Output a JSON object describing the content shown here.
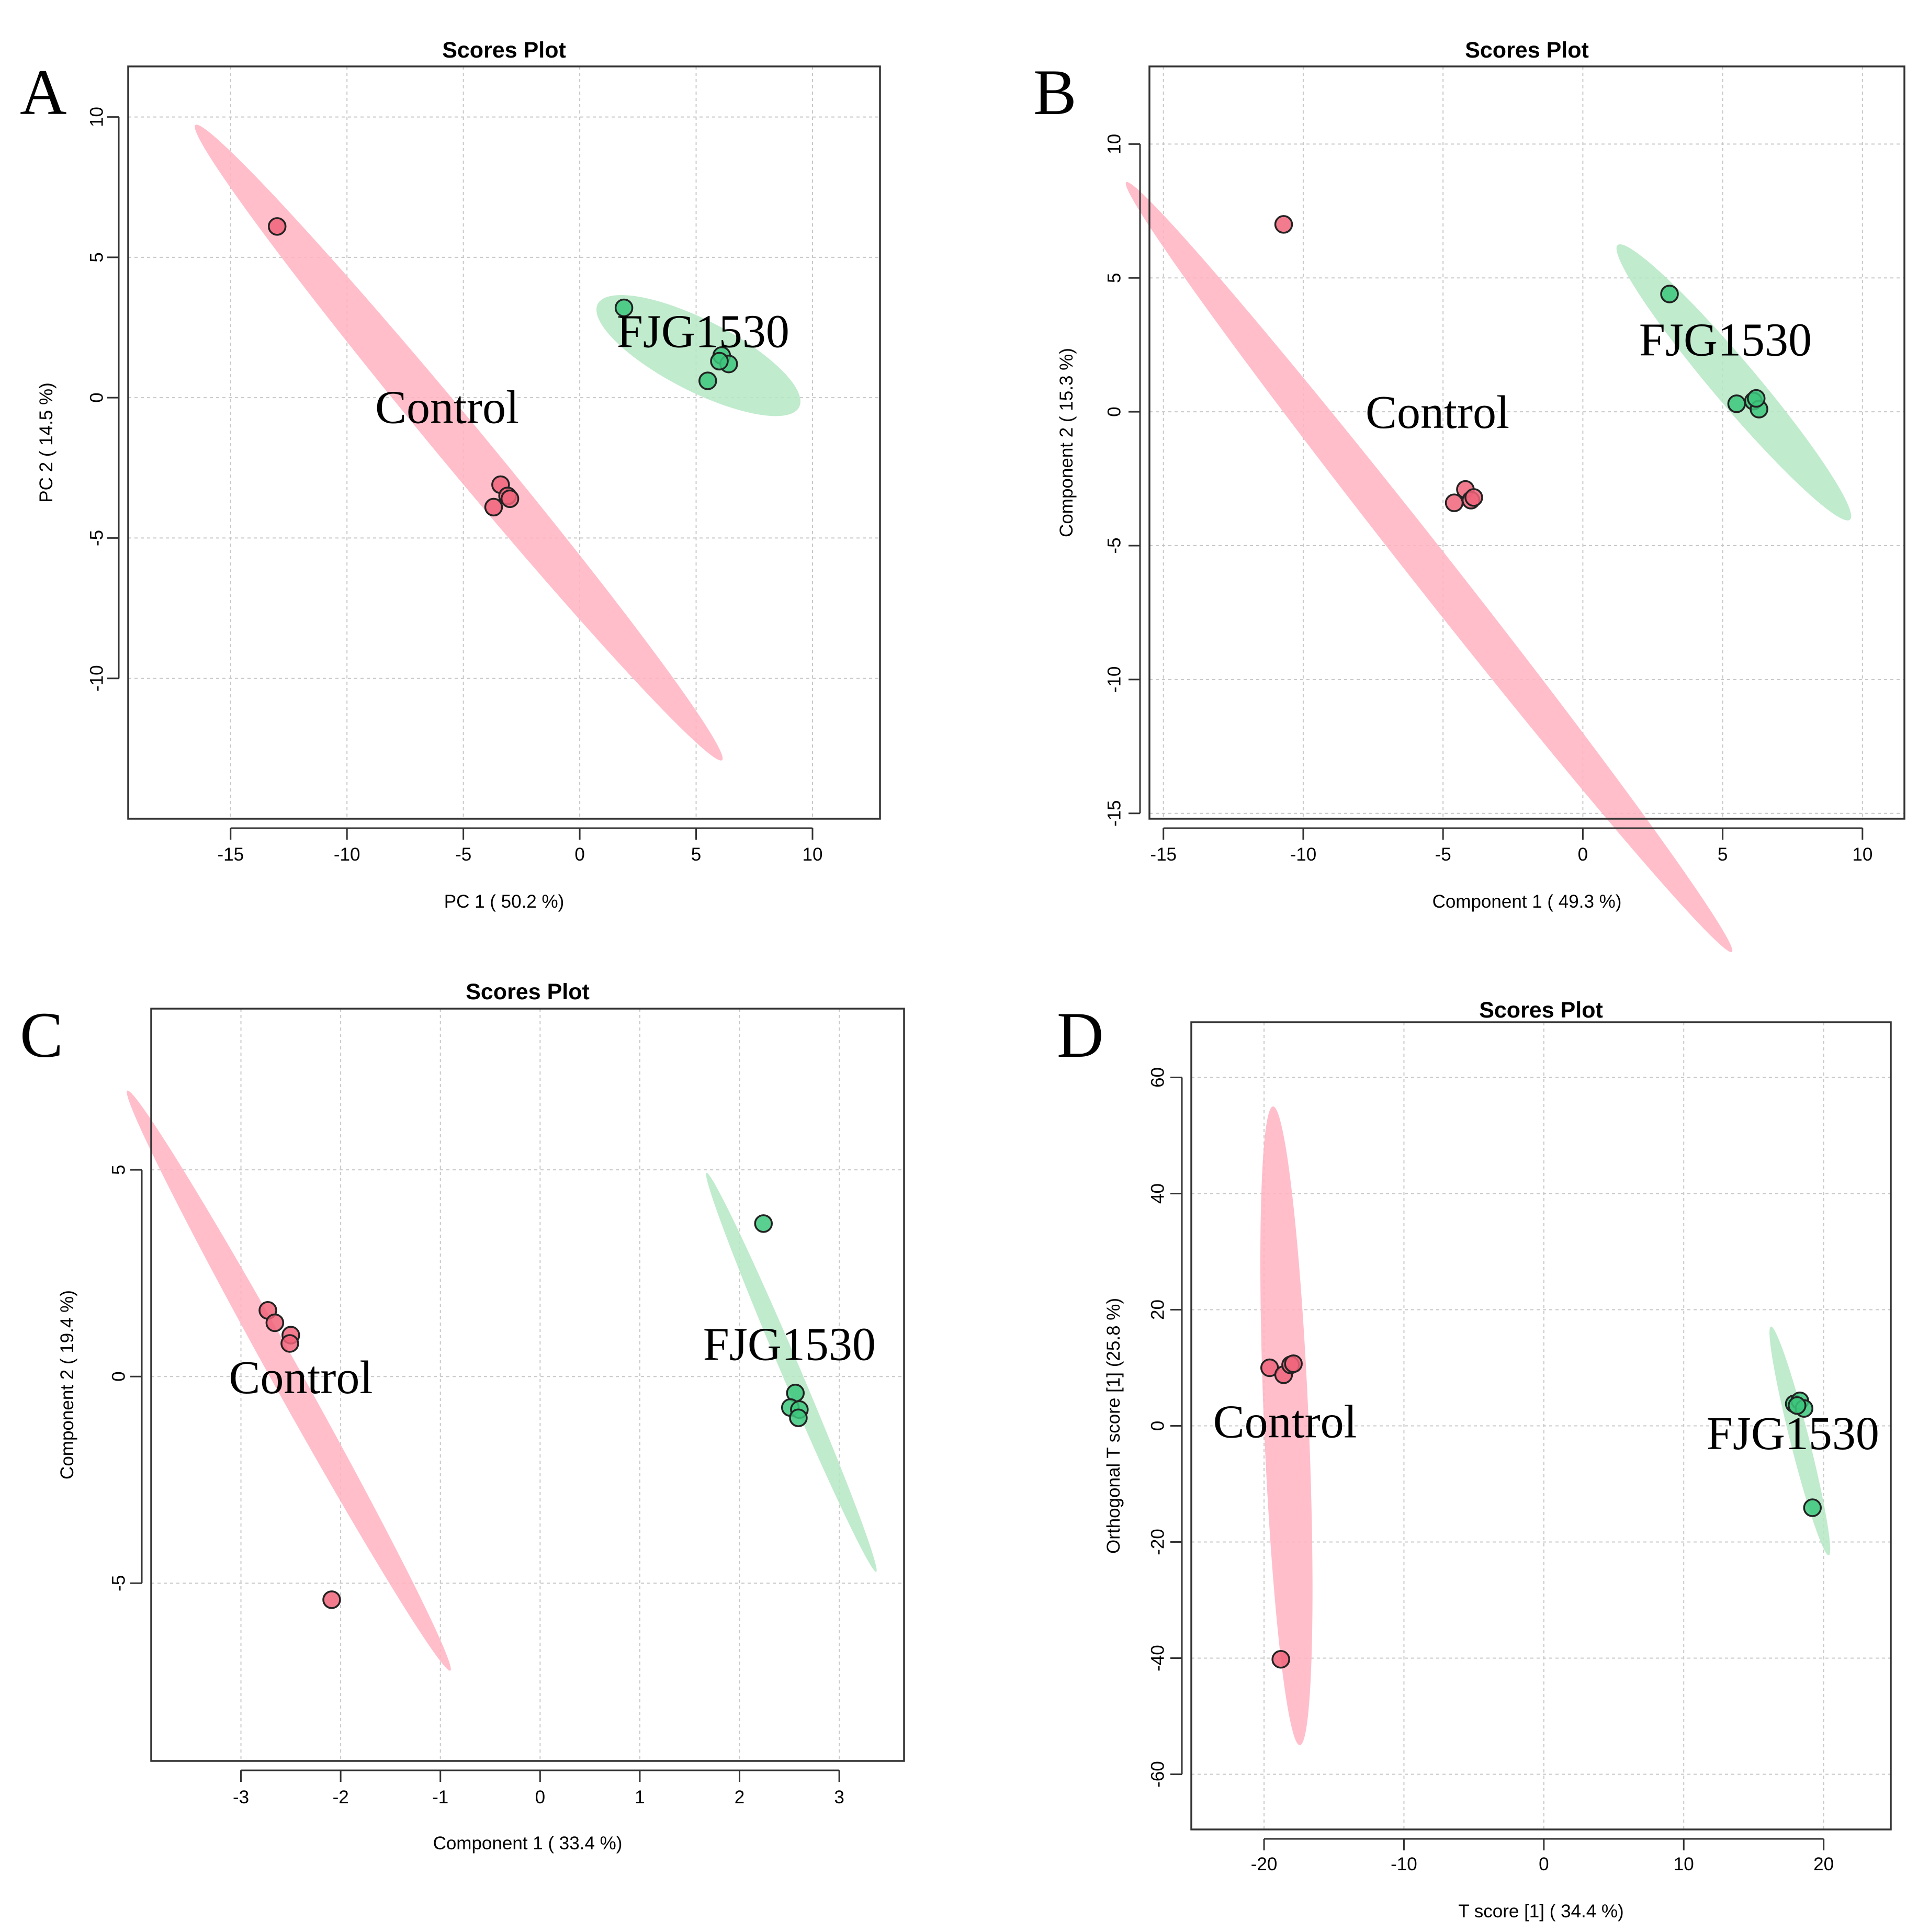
{
  "colors": {
    "control_fill": "#f0647a",
    "control_ellipse": "#ffb3c1",
    "fjg_fill": "#3cc77c",
    "fjg_ellipse": "#b5e8c4"
  },
  "chart_data": [
    {
      "panel": "A",
      "type": "scatter",
      "title": "Scores Plot",
      "xlabel": "PC 1 ( 50.2 %)",
      "ylabel": "PC 2 ( 14.5 %)",
      "xlim": [
        -19.4,
        12.9
      ],
      "ylim": [
        -15.0,
        11.8
      ],
      "xticks": [
        -15,
        -10,
        -5,
        0,
        5,
        10
      ],
      "yticks": [
        -10,
        -5,
        0,
        5,
        10
      ],
      "grid": true,
      "series": [
        {
          "name": "Control",
          "label_pos": [
            -5.7,
            -0.9
          ],
          "points": [
            [
              -13.0,
              6.1
            ],
            [
              -3.4,
              -3.1
            ],
            [
              -3.1,
              -3.5
            ],
            [
              -3.7,
              -3.9
            ],
            [
              -3.0,
              -3.6
            ]
          ],
          "ellipse": {
            "cx": -5.2,
            "cy": -1.6,
            "rx": 16.0,
            "ry": 0.9,
            "angle": -45
          }
        },
        {
          "name": "FJG1530",
          "label_pos": [
            5.3,
            1.8
          ],
          "points": [
            [
              1.9,
              3.2
            ],
            [
              6.1,
              1.5
            ],
            [
              6.4,
              1.2
            ],
            [
              5.5,
              0.6
            ],
            [
              6.0,
              1.3
            ]
          ],
          "ellipse": {
            "cx": 5.1,
            "cy": 1.5,
            "rx": 4.7,
            "ry": 1.3,
            "angle": -23
          }
        }
      ]
    },
    {
      "panel": "B",
      "type": "scatter",
      "title": "Scores Plot",
      "xlabel": "Component 1 ( 49.3 %)",
      "ylabel": "Component 2 ( 15.3 %)",
      "xlim": [
        -15.5,
        11.5
      ],
      "ylim": [
        -15.2,
        12.9
      ],
      "xticks": [
        -15,
        -10,
        -5,
        0,
        5,
        10
      ],
      "yticks": [
        -15,
        -10,
        -5,
        0,
        5,
        10
      ],
      "grid": true,
      "series": [
        {
          "name": "Control",
          "label_pos": [
            -5.2,
            -0.6
          ],
          "points": [
            [
              -10.7,
              7.0
            ],
            [
              -4.6,
              -3.4
            ],
            [
              -4.2,
              -2.9
            ],
            [
              -4.0,
              -3.3
            ],
            [
              -3.9,
              -3.2
            ]
          ],
          "ellipse": {
            "cx": -5.5,
            "cy": -5.8,
            "rx": 18.0,
            "ry": 0.75,
            "angle": -53
          }
        },
        {
          "name": "FJG1530",
          "label_pos": [
            5.1,
            2.1
          ],
          "points": [
            [
              3.1,
              4.4
            ],
            [
              5.5,
              0.3
            ],
            [
              6.1,
              0.4
            ],
            [
              6.3,
              0.1
            ],
            [
              6.2,
              0.5
            ]
          ],
          "ellipse": {
            "cx": 5.4,
            "cy": 1.1,
            "rx": 6.6,
            "ry": 0.8,
            "angle": -51
          }
        }
      ]
    },
    {
      "panel": "C",
      "type": "scatter",
      "title": "Scores Plot",
      "xlabel": "Component 1 ( 33.4 %)",
      "ylabel": "Component 2 ( 19.4 %)",
      "xlim": [
        -3.9,
        3.65
      ],
      "ylim": [
        -9.3,
        8.9
      ],
      "xticks": [
        -3,
        -2,
        -1,
        0,
        1,
        2,
        3
      ],
      "yticks": [
        -5,
        0,
        5
      ],
      "grid": true,
      "series": [
        {
          "name": "Control",
          "label_pos": [
            -2.4,
            -0.4
          ],
          "points": [
            [
              -2.73,
              1.6
            ],
            [
              -2.66,
              1.3
            ],
            [
              -2.5,
              1.0
            ],
            [
              -2.51,
              0.8
            ],
            [
              -2.09,
              -5.4
            ]
          ],
          "ellipse": {
            "cx": -2.52,
            "cy": -0.1,
            "rx": 7.2,
            "ry": 0.15,
            "angle": -77
          }
        },
        {
          "name": "FJG1530",
          "label_pos": [
            2.5,
            0.4
          ],
          "points": [
            [
              2.24,
              3.7
            ],
            [
              2.56,
              -0.4
            ],
            [
              2.51,
              -0.75
            ],
            [
              2.6,
              -0.8
            ],
            [
              2.59,
              -1.0
            ]
          ],
          "ellipse": {
            "cx": 2.52,
            "cy": 0.1,
            "rx": 4.9,
            "ry": 0.06,
            "angle": -80
          }
        }
      ]
    },
    {
      "panel": "D",
      "type": "scatter",
      "title": "Scores Plot",
      "xlabel": "T score [1] ( 34.4 %)",
      "ylabel": "Orthogonal T score [1] (25.8 %)",
      "xlim": [
        -25.2,
        24.8
      ],
      "ylim": [
        -69.5,
        69.5
      ],
      "xticks": [
        -20,
        -10,
        0,
        10,
        20
      ],
      "yticks": [
        -60,
        -40,
        -20,
        0,
        20,
        40,
        60
      ],
      "grid": true,
      "series": [
        {
          "name": "Control",
          "label_pos": [
            -18.5,
            -2.0
          ],
          "points": [
            [
              -19.6,
              10.0
            ],
            [
              -18.6,
              8.8
            ],
            [
              -18.1,
              10.5
            ],
            [
              -17.9,
              10.7
            ],
            [
              -18.8,
              -40.2
            ]
          ],
          "ellipse": {
            "cx": -18.4,
            "cy": 0.0,
            "rx": 55.0,
            "ry": 1.6,
            "angle": -89
          }
        },
        {
          "name": "FJG1530",
          "label_pos": [
            17.8,
            -4.0
          ],
          "points": [
            [
              17.9,
              3.8
            ],
            [
              18.3,
              4.3
            ],
            [
              18.6,
              3.0
            ],
            [
              18.1,
              3.5
            ],
            [
              19.2,
              -14.1
            ]
          ],
          "ellipse": {
            "cx": 18.3,
            "cy": -2.6,
            "rx": 19.8,
            "ry": 0.45,
            "angle": -84
          }
        }
      ]
    }
  ]
}
